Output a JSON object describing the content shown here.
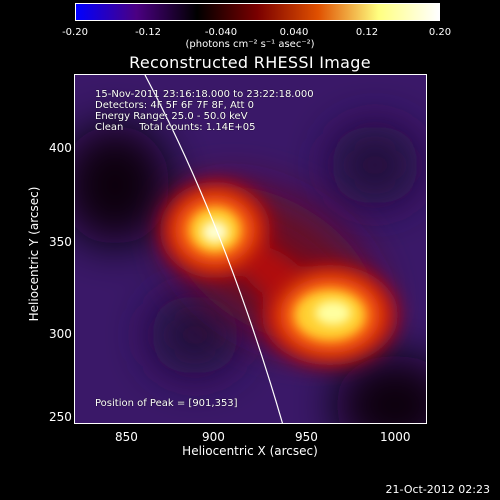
{
  "colorbar": {
    "ticks": [
      "-0.20",
      "-0.12",
      "-0.040",
      "0.040",
      "0.12",
      "0.20"
    ],
    "units": "(photons cm⁻² s⁻¹ asec⁻²)",
    "colormap": [
      "#0000ff",
      "#4b0082",
      "#000000",
      "#7a0000",
      "#e05000",
      "#ffff80",
      "#ffffff"
    ]
  },
  "title": "Reconstructed RHESSI Image",
  "annotations": {
    "time": "15-Nov-2011 23:16:18.000 to 23:22:18.000",
    "detectors": "Detectors: 4F 5F 6F 7F 8F, Att 0",
    "energy": "Energy Range: 25.0 - 50.0 keV",
    "clean": "Clean     Total counts: 1.14E+05",
    "peak": "Position of Peak = [901,353]"
  },
  "axes": {
    "xlabel": "Heliocentric X (arcsec)",
    "ylabel": "Heliocentric Y (arcsec)",
    "xticks": [
      "850",
      "900",
      "950",
      "1000"
    ],
    "yticks": [
      "250",
      "300",
      "350",
      "400"
    ]
  },
  "timestamp": "21-Oct-2012 02:23"
}
